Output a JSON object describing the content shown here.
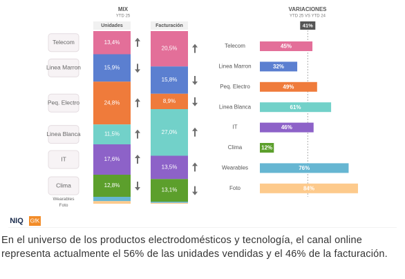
{
  "chart_data": [
    {
      "type": "stacked_column",
      "title": "MIX",
      "subtitle": "YTD 25",
      "categories": [
        "Unidades",
        "Facturación"
      ],
      "ylim": [
        0,
        100
      ],
      "series": [
        {
          "name": "Telecom",
          "color": "#e36f99",
          "values": [
            13.4,
            20.5
          ],
          "value_labels": [
            "13,4%",
            "20,5%"
          ],
          "trends": [
            "up",
            "up"
          ]
        },
        {
          "name": "Linea Marron",
          "color": "#5b7fd0",
          "values": [
            15.9,
            15.8
          ],
          "value_labels": [
            "15,9%",
            "15,8%"
          ],
          "trends": [
            "down",
            "down"
          ]
        },
        {
          "name": "Peq. Electro",
          "color": "#ef7b3b",
          "values": [
            24.8,
            8.9
          ],
          "value_labels": [
            "24,8%",
            "8,9%"
          ],
          "trends": [
            "up",
            "down"
          ]
        },
        {
          "name": "Linea Blanca",
          "color": "#72d1c9",
          "values": [
            11.5,
            27.0
          ],
          "value_labels": [
            "11,5%",
            "27,0%"
          ],
          "trends": [
            "up",
            "up"
          ]
        },
        {
          "name": "IT",
          "color": "#8d62c8",
          "values": [
            17.6,
            13.5
          ],
          "value_labels": [
            "17,6%",
            "13,5%"
          ],
          "trends": [
            "up",
            "up"
          ]
        },
        {
          "name": "Clima",
          "color": "#5c9f2c",
          "values": [
            12.8,
            13.1
          ],
          "value_labels": [
            "12,8%",
            "13,1%"
          ],
          "trends": [
            "down",
            "down"
          ]
        },
        {
          "name": "Wearables",
          "color": "#66b6d2",
          "values": [
            2.5,
            0.7
          ],
          "value_labels": [
            null,
            null
          ],
          "trends": [
            null,
            null
          ]
        },
        {
          "name": "Foto",
          "color": "#fdca8c",
          "values": [
            1.5,
            0.5
          ],
          "value_labels": [
            null,
            null
          ],
          "trends": [
            null,
            null
          ]
        }
      ]
    },
    {
      "type": "hbar",
      "title": "VARIACIONES",
      "subtitle": "YTD 25 VS YTD 24",
      "categories": [
        "Telecom",
        "Linea Marron",
        "Peq. Electro",
        "Linea Blanca",
        "IT",
        "Clima",
        "Wearables",
        "Foto"
      ],
      "values": [
        45,
        32,
        49,
        61,
        46,
        12,
        76,
        84
      ],
      "value_labels": [
        "45%",
        "32%",
        "49%",
        "61%",
        "46%",
        "12%",
        "76%",
        "84%"
      ],
      "colors": [
        "#e36f99",
        "#5b7fd0",
        "#ef7b3b",
        "#72d1c9",
        "#8d62c8",
        "#5c9f2c",
        "#66b6d2",
        "#fdca8c"
      ],
      "reference": {
        "value": 41,
        "label": "41%"
      },
      "xlim": [
        0,
        100
      ]
    }
  ],
  "logos": [
    "NIQ",
    "GfK"
  ],
  "caption": "En el universo de los productos electrodomésticos y tecnología, el canal online representa actualmente el 56% de las unidades vendidas y el 46% de la facturación."
}
